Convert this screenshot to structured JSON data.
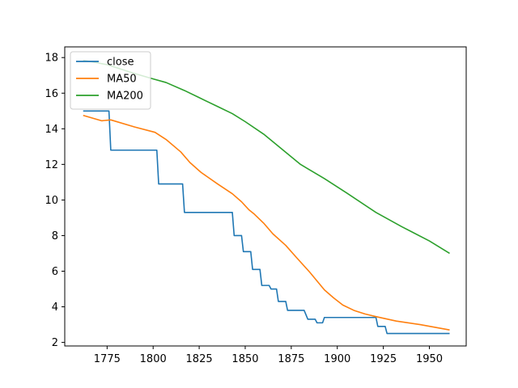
{
  "chart_data": {
    "type": "line",
    "title": "",
    "xlabel": "",
    "ylabel": "",
    "xlim": [
      1752,
      1970
    ],
    "ylim": [
      1.8,
      18.6
    ],
    "xticks": [
      1775,
      1800,
      1825,
      1850,
      1875,
      1900,
      1925,
      1950
    ],
    "yticks": [
      2,
      4,
      6,
      8,
      10,
      12,
      14,
      16,
      18
    ],
    "grid": false,
    "legend_position": "top-left",
    "series": [
      {
        "name": "close",
        "color": "#1f77b4",
        "points": [
          [
            1762,
            15.0
          ],
          [
            1776,
            15.0
          ],
          [
            1777,
            12.8
          ],
          [
            1802,
            12.8
          ],
          [
            1803,
            10.9
          ],
          [
            1816,
            10.9
          ],
          [
            1817,
            9.3
          ],
          [
            1843,
            9.3
          ],
          [
            1844,
            8.0
          ],
          [
            1848,
            8.0
          ],
          [
            1849,
            7.1
          ],
          [
            1853,
            7.1
          ],
          [
            1854,
            6.1
          ],
          [
            1858,
            6.1
          ],
          [
            1859,
            5.2
          ],
          [
            1863,
            5.2
          ],
          [
            1864,
            5.0
          ],
          [
            1867,
            5.0
          ],
          [
            1868,
            4.3
          ],
          [
            1872,
            4.3
          ],
          [
            1873,
            3.8
          ],
          [
            1882,
            3.8
          ],
          [
            1884,
            3.3
          ],
          [
            1888,
            3.3
          ],
          [
            1889,
            3.1
          ],
          [
            1892,
            3.1
          ],
          [
            1893,
            3.4
          ],
          [
            1921,
            3.4
          ],
          [
            1922,
            2.9
          ],
          [
            1926,
            2.9
          ],
          [
            1927,
            2.5
          ],
          [
            1961,
            2.5
          ]
        ]
      },
      {
        "name": "MA50",
        "color": "#ff7f0e",
        "points": [
          [
            1762,
            14.75
          ],
          [
            1772,
            14.45
          ],
          [
            1777,
            14.5
          ],
          [
            1790,
            14.1
          ],
          [
            1801,
            13.8
          ],
          [
            1807,
            13.4
          ],
          [
            1815,
            12.7
          ],
          [
            1820,
            12.1
          ],
          [
            1826,
            11.55
          ],
          [
            1835,
            10.9
          ],
          [
            1843,
            10.35
          ],
          [
            1848,
            9.9
          ],
          [
            1852,
            9.45
          ],
          [
            1855,
            9.2
          ],
          [
            1860,
            8.7
          ],
          [
            1865,
            8.1
          ],
          [
            1872,
            7.45
          ],
          [
            1878,
            6.75
          ],
          [
            1885,
            5.95
          ],
          [
            1893,
            4.95
          ],
          [
            1898,
            4.5
          ],
          [
            1903,
            4.1
          ],
          [
            1909,
            3.8
          ],
          [
            1915,
            3.6
          ],
          [
            1921,
            3.45
          ],
          [
            1932,
            3.2
          ],
          [
            1945,
            3.0
          ],
          [
            1961,
            2.7
          ]
        ]
      },
      {
        "name": "MA200",
        "color": "#2ca02c",
        "points": [
          [
            1762,
            17.85
          ],
          [
            1775,
            17.6
          ],
          [
            1790,
            17.1
          ],
          [
            1800,
            16.8
          ],
          [
            1807,
            16.6
          ],
          [
            1817,
            16.15
          ],
          [
            1825,
            15.75
          ],
          [
            1835,
            15.25
          ],
          [
            1843,
            14.85
          ],
          [
            1850,
            14.4
          ],
          [
            1860,
            13.7
          ],
          [
            1870,
            12.85
          ],
          [
            1880,
            12.0
          ],
          [
            1893,
            11.2
          ],
          [
            1905,
            10.4
          ],
          [
            1921,
            9.3
          ],
          [
            1935,
            8.5
          ],
          [
            1950,
            7.7
          ],
          [
            1961,
            7.0
          ]
        ]
      }
    ]
  }
}
